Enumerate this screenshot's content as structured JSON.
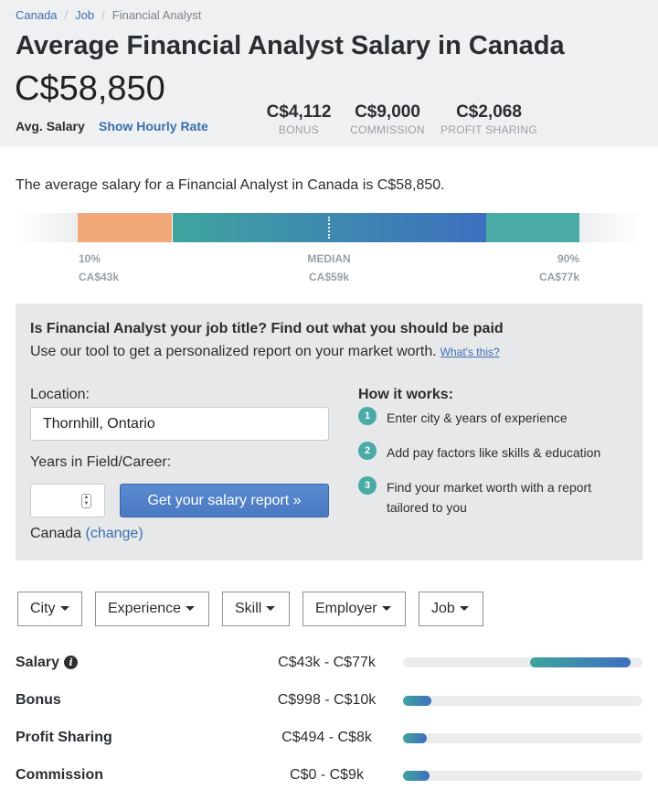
{
  "breadcrumb": [
    "Canada",
    "Job",
    "Financial Analyst"
  ],
  "header": {
    "title": "Average Financial Analyst Salary in Canada",
    "avg_salary": "C$58,850",
    "avg_label": "Avg. Salary",
    "hourly_link": "Show Hourly Rate",
    "stats": [
      {
        "value": "C$4,112",
        "label": "BONUS"
      },
      {
        "value": "C$9,000",
        "label": "COMMISSION"
      },
      {
        "value": "C$2,068",
        "label": "PROFIT SHARING"
      }
    ]
  },
  "summary": "The average salary for a Financial Analyst in Canada is C$58,850.",
  "distribution": {
    "low": {
      "label": "10%",
      "value": "CA$43k"
    },
    "median": {
      "label": "MEDIAN",
      "value": "CA$59k"
    },
    "high": {
      "label": "90%",
      "value": "CA$77k"
    }
  },
  "tool": {
    "title": "Is Financial Analyst your job title? Find out what you should be paid",
    "subtitle": "Use our tool to get a personalized report on your market worth.",
    "whats_this": "What's this?",
    "location_label": "Location:",
    "location_value": "Thornhill, Ontario",
    "years_label": "Years in Field/Career:",
    "report_button": "Get your salary report »",
    "country": "Canada",
    "change_link": "(change)",
    "how_title": "How it works:",
    "steps": [
      {
        "num": "1",
        "text": "Enter city & years of experience"
      },
      {
        "num": "2",
        "text": "Add pay factors like skills & education"
      },
      {
        "num": "3",
        "text": "Find your market worth with a report tailored to you"
      }
    ]
  },
  "filters": [
    "City",
    "Experience",
    "Skill",
    "Employer",
    "Job"
  ],
  "pay_rows": [
    {
      "label": "Salary",
      "range": "C$43k - C$77k",
      "start": 0.53,
      "end": 0.95
    },
    {
      "label": "Bonus",
      "range": "C$998 - C$10k",
      "start": 0.0,
      "end": 0.12
    },
    {
      "label": "Profit Sharing",
      "range": "C$494 - C$8k",
      "start": 0.0,
      "end": 0.1
    },
    {
      "label": "Commission",
      "range": "C$0 - C$9k",
      "start": 0.0,
      "end": 0.11
    }
  ],
  "colors": {
    "teal": "#4aaaa6",
    "blue": "#3d6fbf",
    "orange": "#f2a878",
    "link": "#3b6fb0"
  }
}
